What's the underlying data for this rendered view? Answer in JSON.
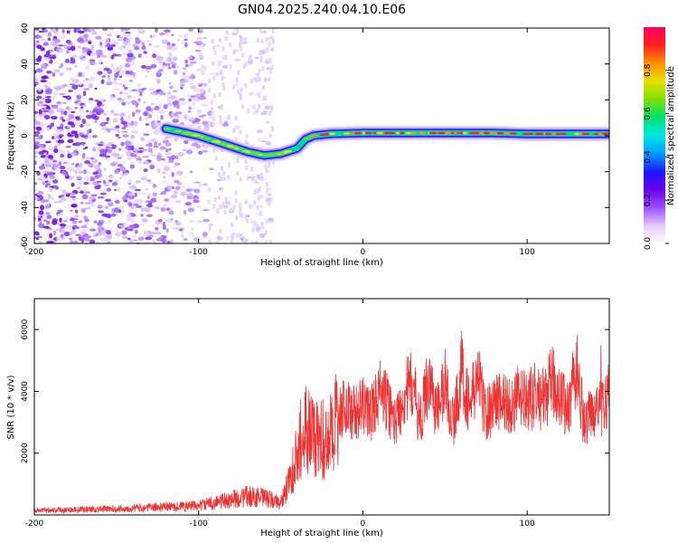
{
  "title": "GN04.2025.240.04.10.E06",
  "colors": {
    "snr_line": "#ee3333",
    "frame": "#000000",
    "background": "#ffffff"
  },
  "chart_data": [
    {
      "type": "heatmap",
      "title": "GN04.2025.240.04.10.E06",
      "xlabel": "Height of straight line (km)",
      "ylabel": "Frequency (Hz)",
      "xlim": [
        -200,
        150
      ],
      "ylim": [
        -60,
        60
      ],
      "x_ticks": [
        -200,
        -100,
        0,
        100
      ],
      "y_ticks": [
        -60,
        -40,
        -20,
        0,
        20,
        40,
        60
      ],
      "colorbar": {
        "label": "Normalized spectral amplitude",
        "range": [
          0,
          1
        ],
        "ticks": [
          0.0,
          0.2,
          0.4,
          0.6,
          0.8
        ],
        "stops": [
          "#ffffff",
          "#e4c8ff",
          "#9a4dff",
          "#6a00e8",
          "#1a1aff",
          "#00a0ff",
          "#00e8e0",
          "#00e070",
          "#80e000",
          "#e8e000",
          "#ff9000",
          "#ff2020",
          "#ff0060"
        ]
      },
      "ridge": {
        "x": [
          -120,
          -110,
          -100,
          -90,
          -80,
          -70,
          -60,
          -50,
          -40,
          -35,
          -30,
          -20,
          0,
          20,
          50,
          80,
          100,
          120,
          150
        ],
        "y": [
          4,
          2,
          0,
          -3,
          -6,
          -9,
          -11,
          -10,
          -7,
          -2,
          0,
          1,
          1.5,
          1.5,
          1.5,
          1.5,
          1,
          1,
          1
        ]
      },
      "noise_region": {
        "x_start": -200,
        "x_end": -55
      }
    },
    {
      "type": "line",
      "xlabel": "Height of straight line (km)",
      "ylabel": "SNR (10 * v/v)",
      "xlim": [
        -200,
        150
      ],
      "ylim": [
        0,
        7000
      ],
      "x_ticks": [
        -200,
        -100,
        0,
        100
      ],
      "y_ticks": [
        2000,
        4000,
        6000
      ],
      "series": [
        {
          "name": "SNR",
          "x": [
            -200,
            -150,
            -100,
            -80,
            -70,
            -60,
            -50,
            -45,
            -40,
            -35,
            -30,
            -25,
            -20,
            -15,
            -10,
            -5,
            0,
            5,
            10,
            15,
            20,
            25,
            30,
            35,
            40,
            45,
            50,
            55,
            60,
            65,
            70,
            75,
            80,
            85,
            90,
            95,
            100,
            105,
            110,
            115,
            120,
            125,
            130,
            135,
            140,
            145,
            150
          ],
          "values": [
            150,
            200,
            300,
            500,
            600,
            550,
            400,
            1000,
            2000,
            2800,
            2600,
            2400,
            2500,
            3400,
            3500,
            3300,
            3500,
            3300,
            4000,
            3600,
            3000,
            3900,
            4200,
            3000,
            4500,
            3300,
            4300,
            2900,
            4700,
            3500,
            4500,
            3200,
            3700,
            3700,
            3500,
            3800,
            3600,
            3900,
            3700,
            4300,
            3900,
            3400,
            4800,
            2800,
            3500,
            3400,
            4000
          ]
        }
      ]
    }
  ]
}
